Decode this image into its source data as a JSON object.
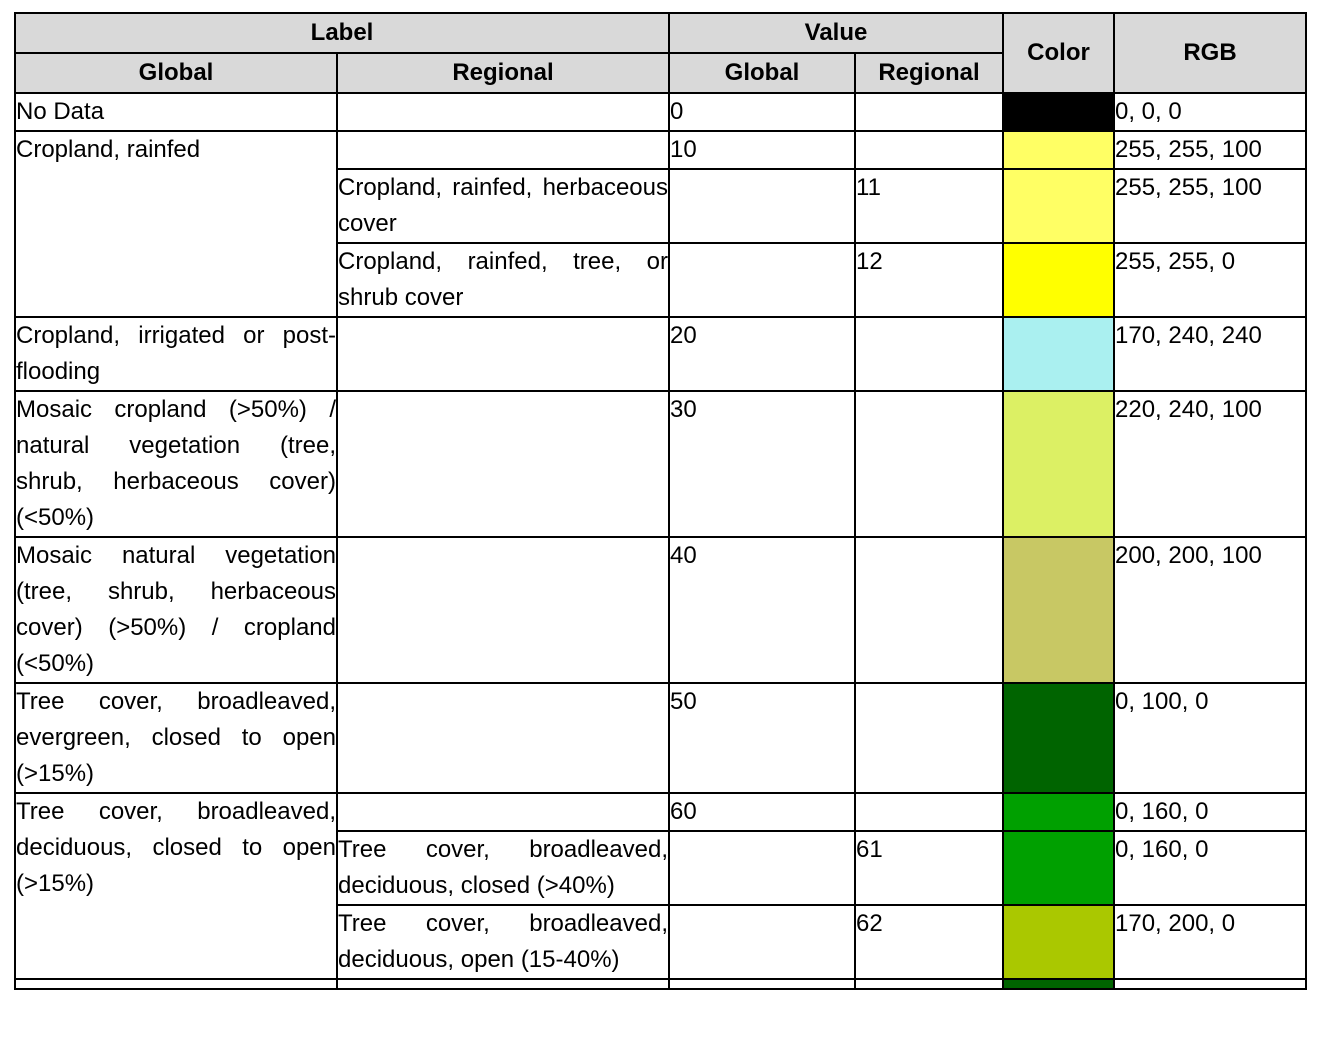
{
  "header": {
    "label": "Label",
    "value": "Value",
    "color": "Color",
    "rgb": "RGB",
    "label_global": "Global",
    "label_regional": "Regional",
    "value_global": "Global",
    "value_regional": "Regional"
  },
  "rows": {
    "nodata": {
      "label": "No Data",
      "value": "0",
      "rgb": "0, 0, 0",
      "color": "#000000"
    },
    "c10": {
      "label": "Cropland, rainfed",
      "value": "10",
      "rgb": "255, 255, 100",
      "color": "#FFFF64"
    },
    "c11": {
      "label": "Cropland, rainfed, herbaceous cover",
      "value": "11",
      "rgb": "255, 255, 100",
      "color": "#FFFF64"
    },
    "c12": {
      "label": "Cropland, rainfed, tree, or shrub cover",
      "value": "12",
      "rgb": "255, 255, 0",
      "color": "#FFFF00"
    },
    "c20": {
      "label": "Cropland, irrigated or post-flooding",
      "value": "20",
      "rgb": "170, 240, 240",
      "color": "#AAF0F0"
    },
    "c30": {
      "label": "Mosaic cropland (>50%) / natural vegetation (tree, shrub, herbaceous cover) (<50%)",
      "value": "30",
      "rgb": "220, 240, 100",
      "color": "#DCF064"
    },
    "c40": {
      "label": "Mosaic natural vegetation (tree, shrub, herbaceous cover) (>50%) / cropland (<50%)",
      "value": "40",
      "rgb": "200, 200, 100",
      "color": "#C8C864"
    },
    "c50": {
      "label": "Tree cover, broadleaved, evergreen, closed to open (>15%)",
      "value": "50",
      "rgb": "0, 100, 0",
      "color": "#006400"
    },
    "c60": {
      "label": "Tree cover, broadleaved, deciduous, closed to open (>15%)",
      "value": "60",
      "rgb": "0, 160, 0",
      "color": "#00A000"
    },
    "c61": {
      "label": "Tree cover, broadleaved, deciduous, closed (>40%)",
      "value": "61",
      "rgb": "0, 160, 0",
      "color": "#00A000"
    },
    "c62": {
      "label": "Tree cover, broadleaved, deciduous, open (15-40%)",
      "value": "62",
      "rgb": "170, 200, 0",
      "color": "#AAC800"
    }
  },
  "trailing_swatch_color": "#006400"
}
